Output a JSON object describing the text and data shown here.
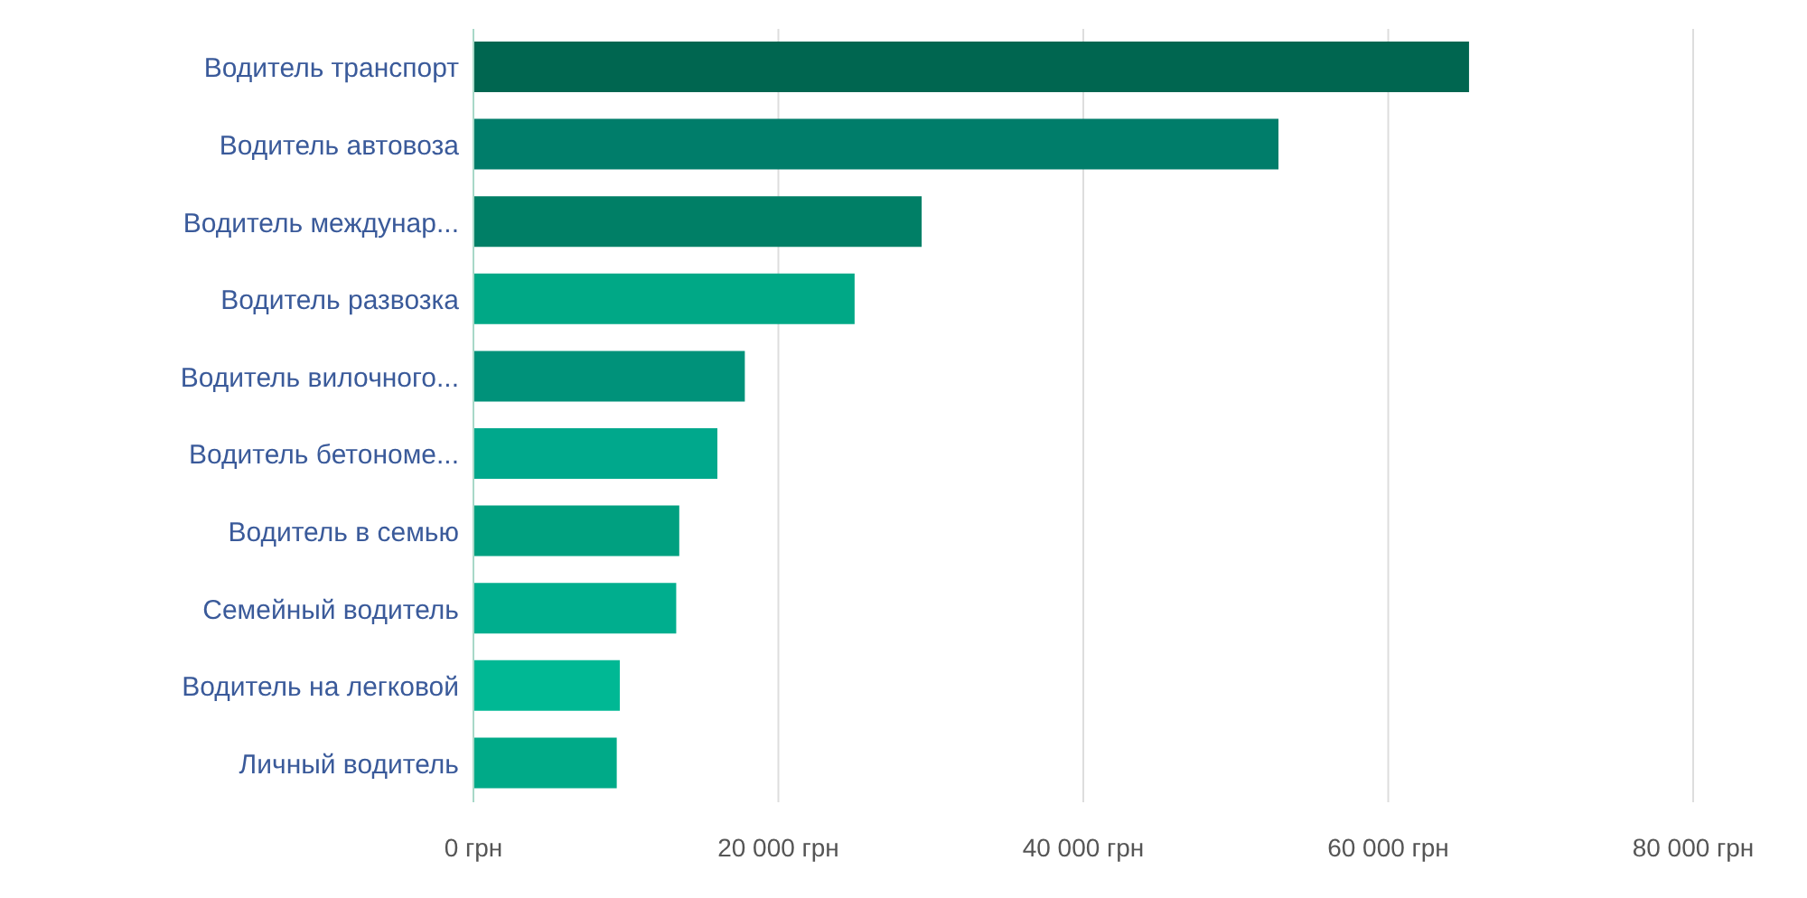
{
  "chart_data": {
    "type": "bar",
    "orientation": "horizontal",
    "categories": [
      "Водитель транспорт",
      "Водитель автовоза",
      "Водитель междунар...",
      "Водитель развозка",
      "Водитель вилочного...",
      "Водитель бетономе...",
      "Водитель в семью",
      "Семейный водитель",
      "Водитель на легковой",
      "Личный водитель"
    ],
    "values": [
      65300,
      52800,
      29400,
      25000,
      17800,
      16000,
      13500,
      13300,
      9600,
      9400
    ],
    "colors": [
      "#006650",
      "#007d6a",
      "#007f66",
      "#00a886",
      "#00927a",
      "#00a88c",
      "#00a080",
      "#00ae8e",
      "#00b894",
      "#00aa88"
    ],
    "xlim": [
      0,
      80000
    ],
    "xticks": [
      {
        "value": 0,
        "label": "0 грн"
      },
      {
        "value": 20000,
        "label": "20 000 грн"
      },
      {
        "value": 40000,
        "label": "40 000 грн"
      },
      {
        "value": 60000,
        "label": "60 000 грн"
      },
      {
        "value": 80000,
        "label": "80 000 грн"
      }
    ],
    "grid": "x"
  }
}
